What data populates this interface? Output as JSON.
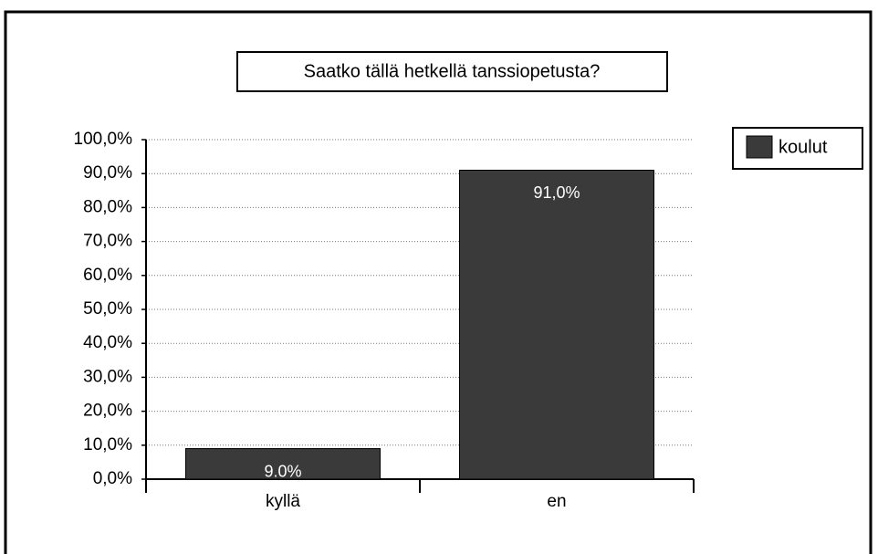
{
  "chart_data": {
    "type": "bar",
    "title": "Saatko tällä hetkellä tanssiopetusta?",
    "categories": [
      "kyllä",
      "en"
    ],
    "series": [
      {
        "name": "koulut",
        "color": "#3a3a3a",
        "values": [
          9.0,
          91.0
        ],
        "value_labels": [
          "9.0%",
          "91,0%"
        ]
      }
    ],
    "ylim": [
      0,
      100
    ],
    "yticks": [
      {
        "value": 0,
        "label": "0,0%"
      },
      {
        "value": 10,
        "label": "10,0%"
      },
      {
        "value": 20,
        "label": "20,0%"
      },
      {
        "value": 30,
        "label": "30,0%"
      },
      {
        "value": 40,
        "label": "40,0%"
      },
      {
        "value": 50,
        "label": "50,0%"
      },
      {
        "value": 60,
        "label": "60,0%"
      },
      {
        "value": 70,
        "label": "70,0%"
      },
      {
        "value": 80,
        "label": "80,0%"
      },
      {
        "value": 90,
        "label": "90,0%"
      },
      {
        "value": 100,
        "label": "100,0%"
      }
    ],
    "grid": true,
    "legend": "right"
  }
}
